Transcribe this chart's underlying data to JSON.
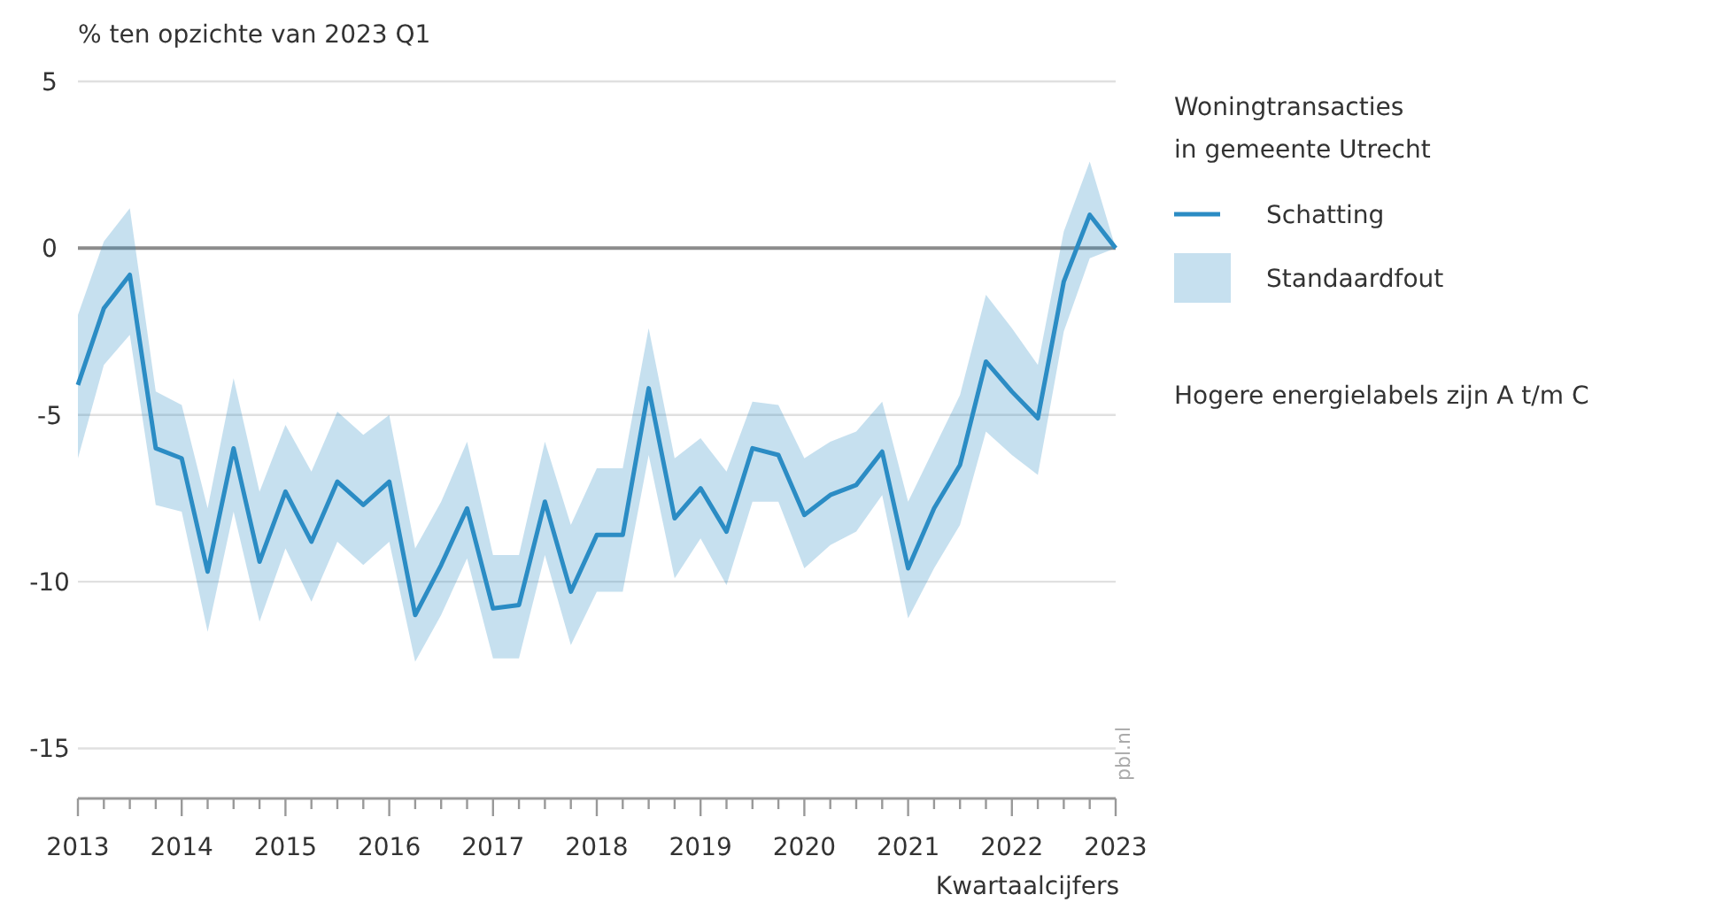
{
  "chart_data": {
    "type": "line",
    "ylabel": "% ten opzichte van 2023 Q1",
    "xlabel": "Kwartaalcijfers",
    "legend_title": "Woningtransacties\nin gemeente Utrecht",
    "legend": "right",
    "grid": "y",
    "marker": "none",
    "line_style": "solid",
    "annotations": [
      "Standaardfout",
      "Hogere energielabels zijn A t/m C",
      "pbl.nl"
    ],
    "ref_lines": [
      {
        "axis": "y",
        "value": 0,
        "color": "#8c8c8c"
      }
    ],
    "x": [
      2013,
      2013.25,
      2013.5,
      2013.75,
      2014,
      2014.25,
      2014.5,
      2014.75,
      2015,
      2015.25,
      2015.5,
      2015.75,
      2016,
      2016.25,
      2016.5,
      2016.75,
      2017,
      2017.25,
      2017.5,
      2017.75,
      2018,
      2018.25,
      2018.5,
      2018.75,
      2019,
      2019.25,
      2019.5,
      2019.75,
      2020,
      2020.25,
      2020.5,
      2020.75,
      2021,
      2021.25,
      2021.5,
      2021.75,
      2022,
      2022.25,
      2022.5,
      2022.75,
      2023
    ],
    "xlim": [
      2013,
      2023
    ],
    "xticks": [
      2013,
      {
        "value": 2013.25,
        "label": null
      },
      {
        "value": 2013.5,
        "label": null
      },
      {
        "value": 2013.75,
        "label": null
      },
      2014,
      {
        "value": 2014.25,
        "label": null
      },
      {
        "value": 2014.5,
        "label": null
      },
      {
        "value": 2014.75,
        "label": null
      },
      2015,
      {
        "value": 2015.25,
        "label": null
      },
      {
        "value": 2015.5,
        "label": null
      },
      {
        "value": 2015.75,
        "label": null
      },
      2016,
      {
        "value": 2016.25,
        "label": null
      },
      {
        "value": 2016.5,
        "label": null
      },
      {
        "value": 2016.75,
        "label": null
      },
      2017,
      {
        "value": 2017.25,
        "label": null
      },
      {
        "value": 2017.5,
        "label": null
      },
      {
        "value": 2017.75,
        "label": null
      },
      2018,
      {
        "value": 2018.25,
        "label": null
      },
      {
        "value": 2018.5,
        "label": null
      },
      {
        "value": 2018.75,
        "label": null
      },
      2019,
      {
        "value": 2019.25,
        "label": null
      },
      {
        "value": 2019.5,
        "label": null
      },
      {
        "value": 2019.75,
        "label": null
      },
      2020,
      {
        "value": 2020.25,
        "label": null
      },
      {
        "value": 2020.5,
        "label": null
      },
      {
        "value": 2020.75,
        "label": null
      },
      2021,
      {
        "value": 2021.25,
        "label": null
      },
      {
        "value": 2021.5,
        "label": null
      },
      {
        "value": 2021.75,
        "label": null
      },
      2022,
      {
        "value": 2022.25,
        "label": null
      },
      {
        "value": 2022.5,
        "label": null
      },
      {
        "value": 2022.75,
        "label": null
      },
      2023
    ],
    "ylim": [
      -16.5,
      5
    ],
    "yticks": [
      -15,
      -10,
      -5,
      0,
      5
    ],
    "series": [
      {
        "name": "Schatting",
        "color": "#2b8cc4",
        "values": [
          -4.1,
          -1.8,
          -0.8,
          -6.0,
          -6.3,
          -9.7,
          -6.0,
          -9.4,
          -7.3,
          -8.8,
          -7.0,
          -7.7,
          -7.0,
          -11.0,
          -9.5,
          -7.8,
          -10.8,
          -10.7,
          -7.6,
          -10.3,
          -8.6,
          -8.6,
          -4.2,
          -8.1,
          -7.2,
          -8.5,
          -6.0,
          -6.2,
          -8.0,
          -7.4,
          -7.1,
          -6.1,
          -9.6,
          -7.8,
          -6.5,
          -3.4,
          -4.3,
          -5.1,
          -1.0,
          1.0,
          0.0
        ],
        "upper": [
          -2.0,
          0.2,
          1.2,
          -4.3,
          -4.7,
          -7.8,
          -3.9,
          -7.3,
          -5.3,
          -6.7,
          -4.9,
          -5.6,
          -5.0,
          -9.0,
          -7.6,
          -5.8,
          -9.2,
          -9.2,
          -5.8,
          -8.3,
          -6.6,
          -6.6,
          -2.4,
          -6.3,
          -5.7,
          -6.7,
          -4.6,
          -4.7,
          -6.3,
          -5.8,
          -5.5,
          -4.6,
          -7.6,
          -6.0,
          -4.4,
          -1.4,
          -2.4,
          -3.5,
          0.5,
          2.6,
          0.0
        ],
        "lower": [
          -6.3,
          -3.5,
          -2.6,
          -7.7,
          -7.9,
          -11.5,
          -7.9,
          -11.2,
          -9.0,
          -10.6,
          -8.8,
          -9.5,
          -8.8,
          -12.4,
          -11.0,
          -9.3,
          -12.3,
          -12.3,
          -9.2,
          -11.9,
          -10.3,
          -10.3,
          -6.2,
          -9.9,
          -8.7,
          -10.1,
          -7.6,
          -7.6,
          -9.6,
          -8.9,
          -8.5,
          -7.4,
          -11.1,
          -9.6,
          -8.3,
          -5.5,
          -6.2,
          -6.8,
          -2.5,
          -0.3,
          0.0
        ]
      }
    ]
  }
}
